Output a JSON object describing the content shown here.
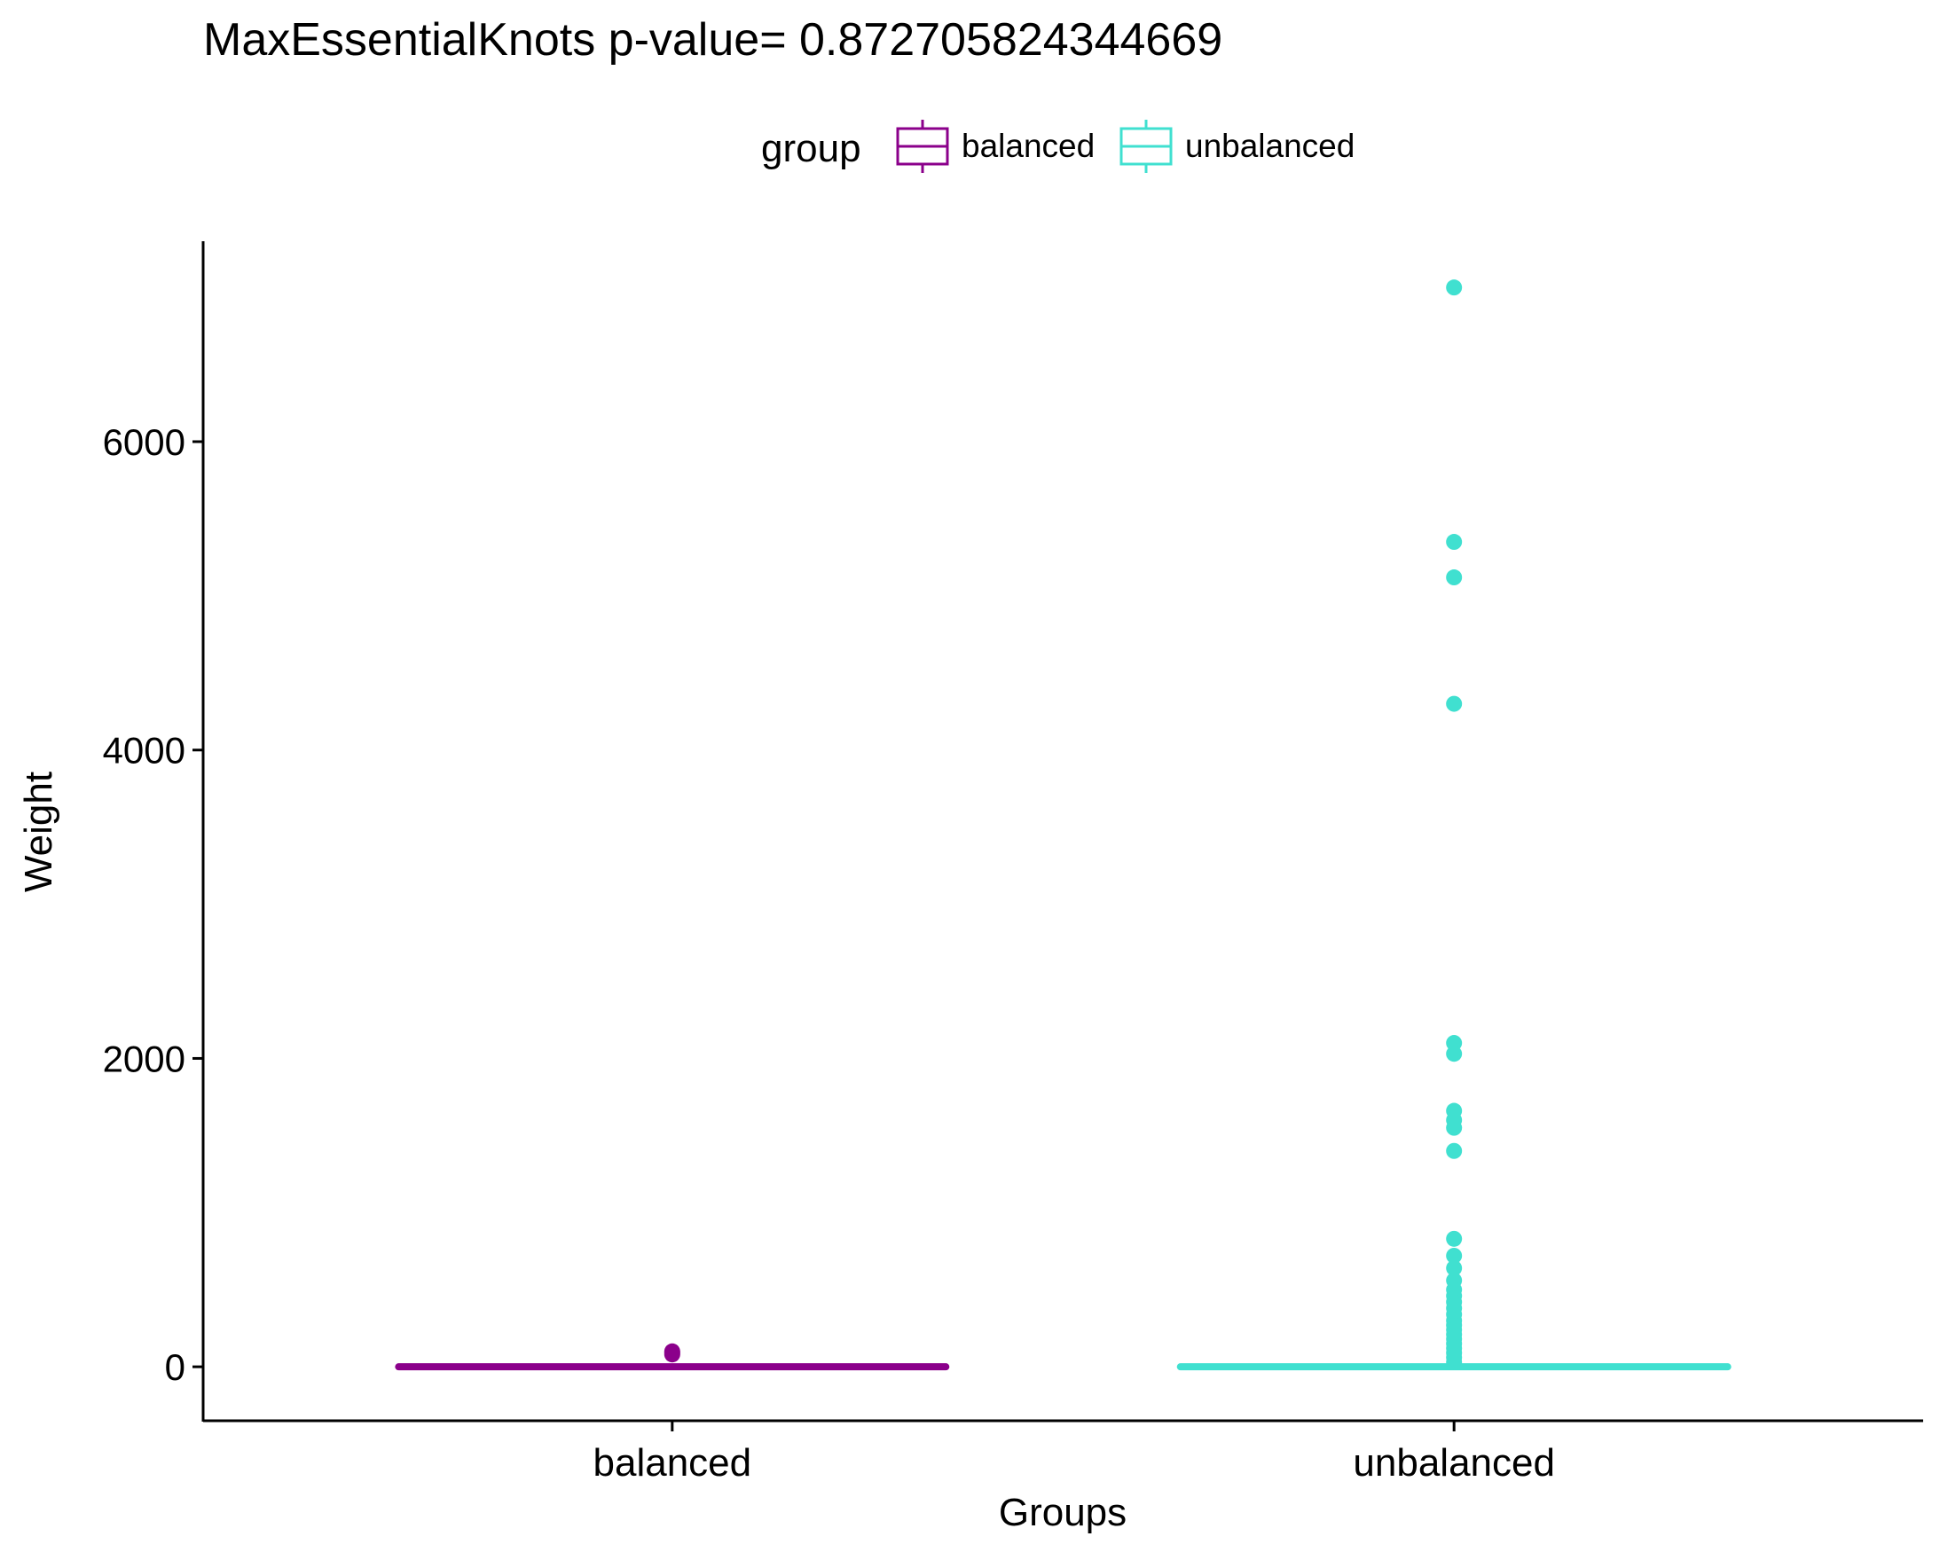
{
  "chart_data": {
    "type": "box",
    "title": "MaxEssentialKnots  p-value= 0.872705824344669",
    "xlabel": "Groups",
    "ylabel": "Weight",
    "legend": {
      "title": "group",
      "position": "top",
      "entries": [
        "balanced",
        "unbalanced"
      ]
    },
    "categories": [
      "balanced",
      "unbalanced"
    ],
    "yticks": [
      0,
      2000,
      4000,
      6000
    ],
    "ylim": [
      -350,
      7300
    ],
    "grid": false,
    "colors": {
      "balanced": "#8B008B",
      "unbalanced": "#40E0D0"
    },
    "series": [
      {
        "name": "balanced",
        "box": {
          "min": 0,
          "q1": 0,
          "median": 0,
          "q3": 0,
          "max": 0
        },
        "outliers": [
          100,
          90,
          80
        ]
      },
      {
        "name": "unbalanced",
        "box": {
          "min": 0,
          "q1": 0,
          "median": 0,
          "q3": 0,
          "max": 0
        },
        "outliers": [
          7000,
          5350,
          5120,
          4300,
          2100,
          2030,
          1660,
          1600,
          1550,
          1400,
          830,
          720,
          640,
          560,
          500,
          460,
          420,
          380,
          340,
          300,
          270,
          240,
          210,
          180,
          150,
          120,
          90,
          60,
          30
        ]
      }
    ]
  }
}
